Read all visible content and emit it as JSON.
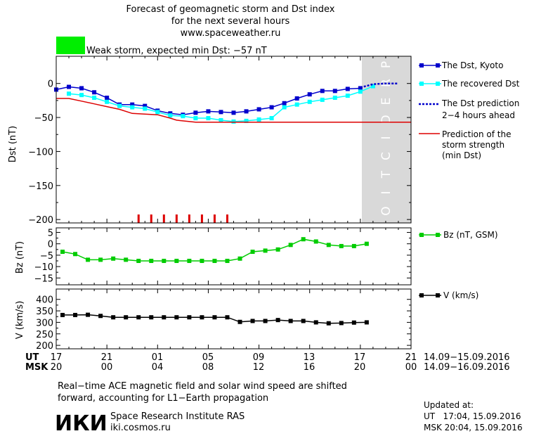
{
  "header": {
    "title_line1": "Forecast of geomagnetic storm and Dst index",
    "title_line2": "for the next several hours",
    "title_line3": "www.spaceweather.ru",
    "storm_label": "Weak storm, expected min Dst: −57 nT",
    "storm_color": "#00ee00"
  },
  "prediction_label": "PREDICTION",
  "time_axis": {
    "ut_label": "UT",
    "msk_label": "MSK",
    "ut_ticks": [
      "17",
      "21",
      "01",
      "05",
      "09",
      "13",
      "17",
      "21"
    ],
    "msk_ticks": [
      "20",
      "00",
      "04",
      "08",
      "12",
      "16",
      "20",
      "00"
    ],
    "ut_range": "14.09−15.09.2016",
    "msk_range": "14.09−16.09.2016"
  },
  "chart_data": [
    {
      "type": "line",
      "ylabel": "Dst (nT)",
      "xlim": [
        0,
        28
      ],
      "ylim": [
        -205,
        40
      ],
      "yticks": [
        0,
        -50,
        -100,
        -150,
        -200
      ],
      "ytick_labels": [
        "0",
        "−50",
        "−100",
        "−150",
        "−200"
      ],
      "prediction_region": [
        24,
        28
      ],
      "series": [
        {
          "name": "The Dst, Kyoto",
          "color": "#0000cc",
          "x": [
            0,
            1,
            2,
            3,
            4,
            5,
            6,
            7,
            8,
            9,
            10,
            11,
            12,
            13,
            14,
            15,
            16,
            17,
            18,
            19,
            20,
            21,
            22,
            23,
            24
          ],
          "y": [
            -9,
            -5,
            -7,
            -13,
            -21,
            -31,
            -31,
            -33,
            -40,
            -44,
            -46,
            -43,
            -41,
            -42,
            -43,
            -41,
            -38,
            -35,
            -29,
            -22,
            -16,
            -11,
            -11,
            -8,
            -7
          ]
        },
        {
          "name": "The recovered Dst",
          "color": "#00ffff",
          "x": [
            1,
            2,
            3,
            4,
            5,
            6,
            7,
            8,
            9,
            10,
            11,
            12,
            13,
            14,
            15,
            16,
            17,
            18,
            19,
            20,
            21,
            22,
            23,
            24,
            25
          ],
          "y": [
            -15,
            -17,
            -21,
            -27,
            -33,
            -35,
            -37,
            -42,
            -47,
            -48,
            -51,
            -51,
            -54,
            -56,
            -55,
            -53,
            -51,
            -35,
            -31,
            -27,
            -24,
            -21,
            -18,
            -12,
            -4
          ]
        },
        {
          "name": "The Dst prediction 2−4 hours ahead",
          "color": "#0000cc",
          "dashed": true,
          "x": [
            24,
            25,
            26,
            27
          ],
          "y": [
            -6,
            -1,
            0,
            0
          ]
        },
        {
          "name": "Prediction of the storm strength (min Dst)",
          "color": "#dd0000",
          "x": [
            0,
            1,
            2,
            3,
            4,
            5,
            6,
            7,
            8,
            9,
            9.5,
            10,
            11,
            12,
            13,
            14,
            15,
            16,
            17,
            18,
            19,
            20,
            21,
            22,
            23,
            24,
            25,
            26,
            27,
            28
          ],
          "y": [
            -22,
            -22,
            -26,
            -30,
            -34,
            -38,
            -44,
            -45,
            -46,
            -51,
            -54,
            -55,
            -57,
            -57,
            -57,
            -57,
            -57,
            -57,
            -57,
            -57,
            -57,
            -57,
            -57,
            -57,
            -57,
            -57,
            -57,
            -57,
            -57,
            -57
          ]
        }
      ],
      "storm_hours_x": [
        6.5,
        7.5,
        8.5,
        9.5,
        10.5,
        11.5,
        12.5,
        13.5
      ]
    },
    {
      "type": "line",
      "ylabel": "Bz (nT)",
      "xlim": [
        0,
        28
      ],
      "ylim": [
        -18,
        7
      ],
      "yticks": [
        5,
        0,
        -5,
        -10,
        -15
      ],
      "ytick_labels": [
        "5",
        "0",
        "−5",
        "−10",
        "−15"
      ],
      "series": [
        {
          "name": "Bz (nT, GSM)",
          "color": "#00cc00",
          "x": [
            0.5,
            1.5,
            2.5,
            3.5,
            4.5,
            5.5,
            6.5,
            7.5,
            8.5,
            9.5,
            10.5,
            11.5,
            12.5,
            13.5,
            14.5,
            15.5,
            16.5,
            17.5,
            18.5,
            19.5,
            20.5,
            21.5,
            22.5,
            23.5,
            24.5
          ],
          "y": [
            -3.5,
            -4.5,
            -7,
            -7,
            -6.5,
            -7,
            -7.5,
            -7.5,
            -7.5,
            -7.5,
            -7.5,
            -7.5,
            -7.5,
            -7.5,
            -6.5,
            -3.5,
            -3,
            -2.5,
            -0.5,
            2,
            1,
            -0.5,
            -1,
            -1,
            0
          ]
        }
      ]
    },
    {
      "type": "line",
      "ylabel": "V (km/s)",
      "xlim": [
        0,
        28
      ],
      "ylim": [
        185,
        445
      ],
      "yticks": [
        400,
        350,
        300,
        250,
        200
      ],
      "ytick_labels": [
        "400",
        "350",
        "300",
        "250",
        "200"
      ],
      "series": [
        {
          "name": "V (km/s)",
          "color": "#000000",
          "x": [
            0.5,
            1.5,
            2.5,
            3.5,
            4.5,
            5.5,
            6.5,
            7.5,
            8.5,
            9.5,
            10.5,
            11.5,
            12.5,
            13.5,
            14.5,
            15.5,
            16.5,
            17.5,
            18.5,
            19.5,
            20.5,
            21.5,
            22.5,
            23.5,
            24.5
          ],
          "y": [
            332,
            332,
            333,
            328,
            322,
            322,
            322,
            322,
            322,
            322,
            322,
            322,
            322,
            322,
            302,
            306,
            306,
            310,
            306,
            306,
            300,
            296,
            297,
            299,
            300
          ]
        }
      ]
    }
  ],
  "legend": {
    "dst_kyoto": "The Dst, Kyoto",
    "recovered": "The recovered Dst",
    "prediction_line1": "The Dst prediction",
    "prediction_line2": "2−4 hours ahead",
    "strength_line1": "Prediction of the",
    "strength_line2": "storm strength",
    "strength_line3": "(min Dst)",
    "bz": "Bz (nT, GSM)",
    "v": "V (km/s)"
  },
  "footer": {
    "note_line1": "Real−time ACE magnetic field and solar wind speed are shifted",
    "note_line2": "forward, accounting for L1−Earth propagation",
    "logo_text": "ИКИ",
    "institute": "Space Research Institute RAS",
    "site": "iki.cosmos.ru",
    "updated_label": "Updated at:",
    "updated_ut": "UT   17:04, 15.09.2016",
    "updated_msk": "MSK 20:04, 15.09.2016"
  }
}
